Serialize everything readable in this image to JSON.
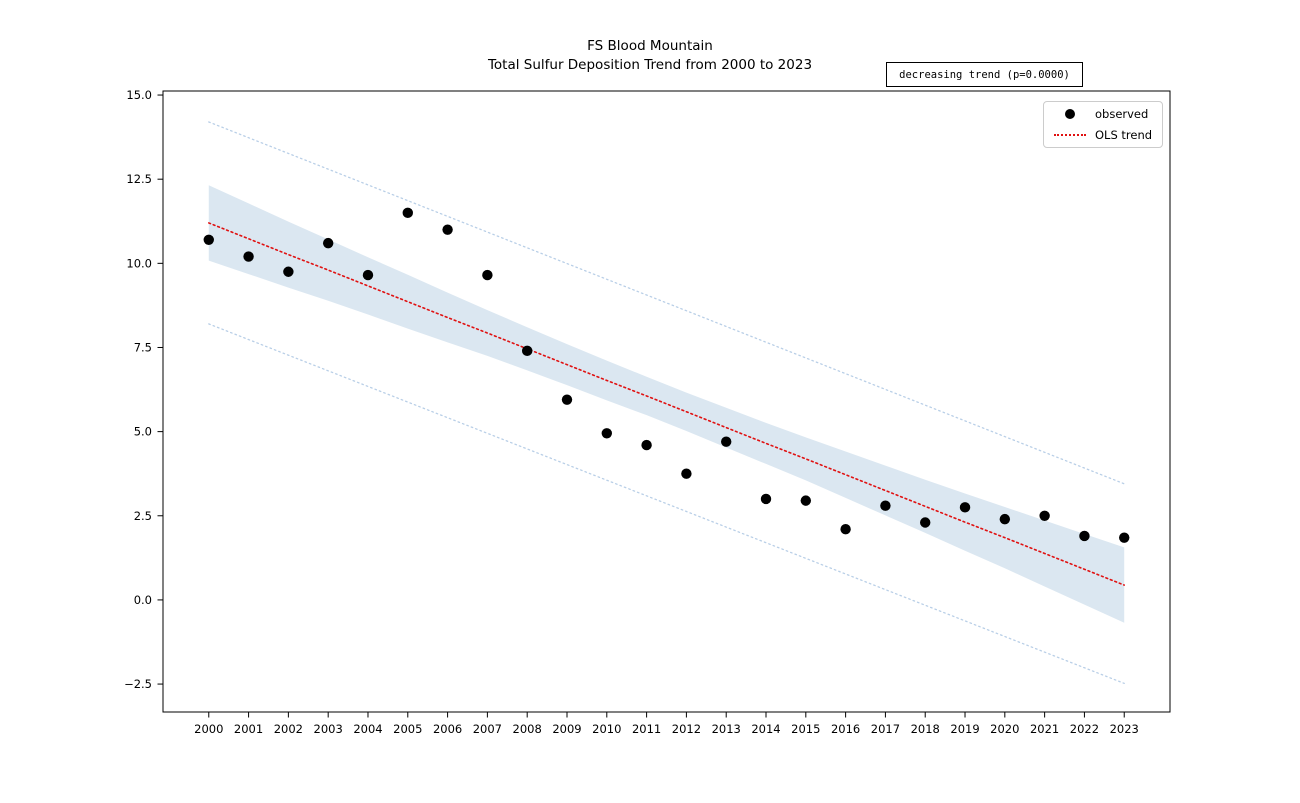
{
  "figure": {
    "background": "#ffffff"
  },
  "chart_data": {
    "type": "scatter",
    "title": "FS Blood Mountain",
    "subtitle": "Total Sulfur Deposition Trend from 2000 to 2023",
    "xlabel": "",
    "ylabel": "",
    "annotation": "decreasing trend (p=0.0000)",
    "legend": [
      "observed",
      "OLS trend"
    ],
    "legend_position": "upper right",
    "grid": false,
    "xlim": [
      1998.85,
      2024.15
    ],
    "ylim": [
      -3.33,
      15.12
    ],
    "xticks": [
      2000,
      2001,
      2002,
      2003,
      2004,
      2005,
      2006,
      2007,
      2008,
      2009,
      2010,
      2011,
      2012,
      2013,
      2014,
      2015,
      2016,
      2017,
      2018,
      2019,
      2020,
      2021,
      2022,
      2023
    ],
    "xtick_labels": [
      "2000",
      "2001",
      "2002",
      "2003",
      "2004",
      "2005",
      "2006",
      "2007",
      "2008",
      "2009",
      "2010",
      "2011",
      "2012",
      "2013",
      "2014",
      "2015",
      "2016",
      "2017",
      "2018",
      "2019",
      "2020",
      "2021",
      "2022",
      "2023"
    ],
    "yticks": [
      15.0,
      12.5,
      10.0,
      7.5,
      5.0,
      2.5,
      0.0,
      -2.5
    ],
    "ytick_labels": [
      "15.0",
      "12.5",
      "10.0",
      "7.5",
      "5.0",
      "2.5",
      "0.0",
      "−2.5"
    ],
    "x": [
      2000,
      2001,
      2002,
      2003,
      2004,
      2005,
      2006,
      2007,
      2008,
      2009,
      2010,
      2011,
      2012,
      2013,
      2014,
      2015,
      2016,
      2017,
      2018,
      2019,
      2020,
      2021,
      2022,
      2023
    ],
    "observed": {
      "name": "observed",
      "marker": "circle",
      "color": "#000000",
      "values": [
        10.7,
        10.2,
        9.75,
        10.6,
        9.65,
        11.5,
        11.0,
        9.65,
        7.4,
        5.95,
        4.95,
        4.6,
        3.75,
        4.7,
        3.0,
        2.95,
        2.1,
        2.8,
        2.3,
        2.75,
        2.4,
        2.5,
        1.9,
        1.85
      ]
    },
    "trend": {
      "name": "OLS trend",
      "style": "dotted",
      "color": "#e01111",
      "slope_per_year": -0.468,
      "values": [
        11.2,
        10.73,
        10.26,
        9.8,
        9.33,
        8.86,
        8.39,
        7.93,
        7.46,
        6.99,
        6.52,
        6.06,
        5.59,
        5.12,
        4.65,
        4.19,
        3.72,
        3.25,
        2.78,
        2.31,
        1.85,
        1.38,
        0.91,
        0.44
      ]
    },
    "ci_band": {
      "name": "confidence band",
      "fill": "#dbe7f1",
      "upper": [
        12.32,
        11.78,
        11.24,
        10.71,
        10.18,
        9.66,
        9.13,
        8.61,
        8.1,
        7.6,
        7.11,
        6.63,
        6.16,
        5.71,
        5.26,
        4.83,
        4.41,
        3.99,
        3.57,
        3.16,
        2.76,
        2.36,
        1.96,
        1.56
      ],
      "lower": [
        10.08,
        9.68,
        9.28,
        8.89,
        8.48,
        8.06,
        7.65,
        7.25,
        6.82,
        6.38,
        5.93,
        5.49,
        5.02,
        4.53,
        4.04,
        3.55,
        3.03,
        2.51,
        1.99,
        1.46,
        0.94,
        0.4,
        -0.14,
        -0.68
      ]
    },
    "prediction_interval": {
      "name": "prediction interval",
      "style": "dotted",
      "color": "#b9cfe7",
      "upper": {
        "x": [
          2000,
          2023
        ],
        "y": [
          14.2,
          3.45
        ]
      },
      "lower": {
        "x": [
          2000,
          2023
        ],
        "y": [
          8.2,
          -2.48
        ]
      }
    },
    "colors": {
      "points": "#000000",
      "trend": "#e01111",
      "band": "#dbe7f1",
      "interval_lines": "#b9cfe7",
      "axes": "#000000",
      "legend_border": "#cccccc"
    }
  }
}
